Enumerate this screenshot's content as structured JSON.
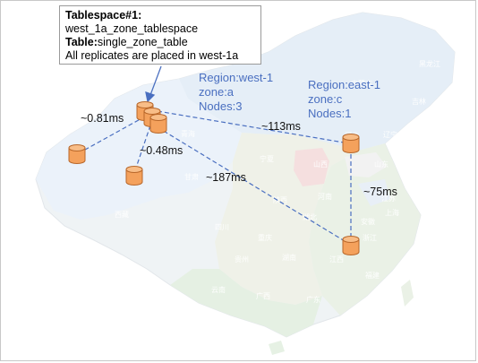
{
  "info_box": {
    "line1_bold": "Tablespace#1:",
    "line2": "west_1a_zone_tablespace",
    "line3_bold": "Table:",
    "line3_rest": "single_zone_table",
    "line4": "All replicates are placed in west-1a"
  },
  "regions": {
    "west": {
      "line1": "Region:west-1",
      "line2": "zone:a",
      "line3": "Nodes:3"
    },
    "east": {
      "line1": "Region:east-1",
      "line2": "zone:c",
      "line3": "Nodes:1"
    }
  },
  "latencies": {
    "l1": "~0.81ms",
    "l2": "~0.48ms",
    "l3": "~113ms",
    "l4": "~187ms",
    "l5": "~75ms"
  },
  "map_labels": [
    "黑龙江",
    "吉林",
    "辽宁",
    "内蒙古",
    "甘肃",
    "宁夏",
    "山西",
    "河北",
    "山东",
    "陕西",
    "河南",
    "江苏",
    "上海",
    "青海",
    "西藏",
    "四川",
    "湖北",
    "安徽",
    "浙江",
    "重庆",
    "湖南",
    "江西",
    "贵州",
    "福建",
    "云南",
    "广西",
    "广东",
    "台湾",
    "海南",
    "香港"
  ],
  "colors": {
    "node_fill": "#f4a15c",
    "node_stroke": "#b8672a",
    "line": "#4a6fc0",
    "region_text": "#4a6fc0"
  }
}
